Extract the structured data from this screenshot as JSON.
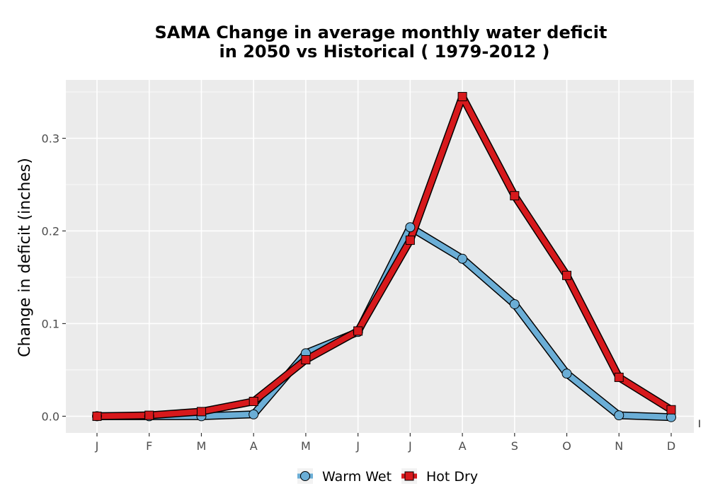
{
  "chart_data": {
    "type": "line",
    "title_line1": "SAMA  Change in average monthly water deficit",
    "title_line2": "in 2050 vs Historical ( 1979-2012 )",
    "xlabel": "",
    "ylabel": "Change in deficit (inches)",
    "categories": [
      "J",
      "F",
      "M",
      "A",
      "M",
      "J",
      "J",
      "A",
      "S",
      "O",
      "N",
      "D"
    ],
    "ylim": [
      -0.018,
      0.363
    ],
    "yticks": [
      0.0,
      0.1,
      0.2,
      0.3
    ],
    "ytick_labels": [
      "0.0",
      "0.1",
      "0.2",
      "0.3"
    ],
    "grid": true,
    "legend_position": "bottom",
    "stray_mark": "I",
    "series": [
      {
        "name": "Warm Wet",
        "marker": "circle",
        "color": "#6baed6",
        "values": [
          0.0,
          0.0,
          0.0,
          0.002,
          0.068,
          0.091,
          0.204,
          0.17,
          0.121,
          0.046,
          0.001,
          -0.001
        ]
      },
      {
        "name": "Hot Dry",
        "marker": "square",
        "color": "#d7191c",
        "values": [
          0.0,
          0.001,
          0.005,
          0.016,
          0.061,
          0.092,
          0.19,
          0.345,
          0.238,
          0.152,
          0.042,
          0.007
        ]
      }
    ]
  }
}
